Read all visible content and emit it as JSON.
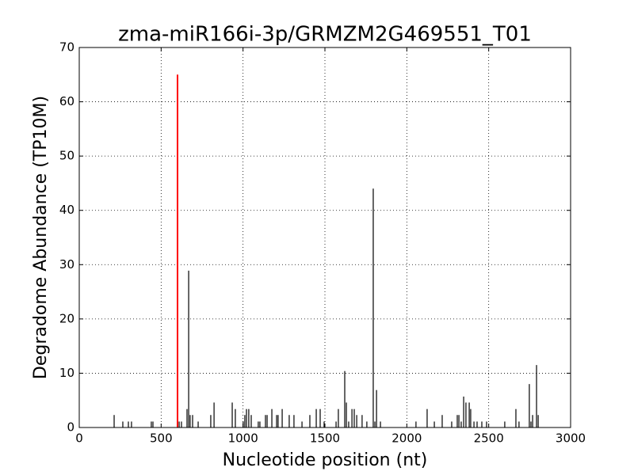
{
  "chart_data": {
    "type": "spike",
    "title": "zma-miR166i-3p/GRMZM2G469551_T01",
    "x_label": "Nucleotide position (nt)",
    "y_label": "Degradome Abundance (TP10M)",
    "x": [
      213,
      266,
      300,
      319,
      440,
      450,
      610,
      624,
      658,
      668,
      677,
      692,
      726,
      803,
      823,
      934,
      953,
      1001,
      1011,
      1021,
      1035,
      1050,
      1093,
      1103,
      1137,
      1147,
      1176,
      1205,
      1214,
      1239,
      1282,
      1311,
      1360,
      1408,
      1447,
      1471,
      1495,
      1568,
      1582,
      1621,
      1631,
      1645,
      1665,
      1679,
      1694,
      1727,
      1756,
      1795,
      1805,
      1815,
      1839,
      2056,
      2124,
      2168,
      2216,
      2274,
      2308,
      2318,
      2332,
      2347,
      2361,
      2381,
      2390,
      2410,
      2429,
      2458,
      2487,
      2598,
      2666,
      2685,
      2748,
      2758,
      2768,
      2792,
      2802
    ],
    "values": [
      2.3,
      1.1,
      1.1,
      1.1,
      1.1,
      1.1,
      1.1,
      1.1,
      3.4,
      28.9,
      2.3,
      2.3,
      1.1,
      2.3,
      4.6,
      4.6,
      3.4,
      1.1,
      2.3,
      3.4,
      3.4,
      2.3,
      1.1,
      1.1,
      2.3,
      2.3,
      3.4,
      2.3,
      2.3,
      3.4,
      2.3,
      2.3,
      1.1,
      2.3,
      3.4,
      3.4,
      1.1,
      1.1,
      3.4,
      10.4,
      4.6,
      1.1,
      3.4,
      3.4,
      2.3,
      2.3,
      1.1,
      44.0,
      1.1,
      6.9,
      1.1,
      1.1,
      3.4,
      1.1,
      2.3,
      1.1,
      2.3,
      2.3,
      1.1,
      5.7,
      4.6,
      4.6,
      3.4,
      1.1,
      1.1,
      1.1,
      1.1,
      1.1,
      3.4,
      1.1,
      8.0,
      1.1,
      2.3,
      11.5,
      2.3
    ],
    "color": "#000000",
    "highlight": {
      "x": 600,
      "value": 65,
      "color": "#ff0000"
    },
    "xlim": [
      0,
      3000
    ],
    "xticks": [
      0,
      500,
      1000,
      1500,
      2000,
      2500,
      3000
    ],
    "ylim": [
      0,
      70
    ],
    "yticks": [
      0,
      10,
      20,
      30,
      40,
      50,
      60,
      70
    ],
    "grid": true
  }
}
